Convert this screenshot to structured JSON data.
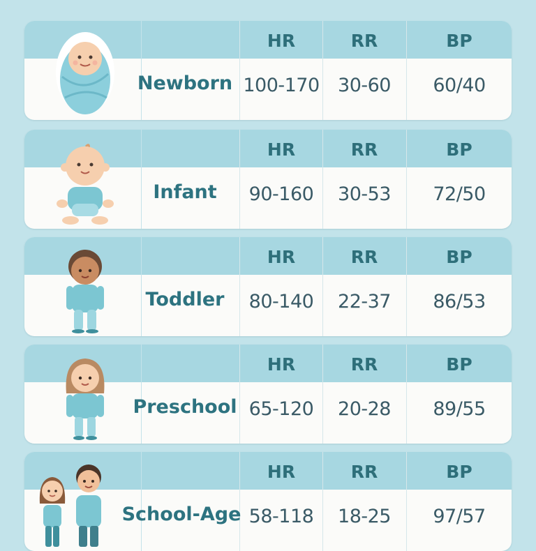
{
  "headers": {
    "hr": "HR",
    "rr": "RR",
    "bp": "BP"
  },
  "rows": [
    {
      "age": "Newborn",
      "hr": "100-170",
      "rr": "30-60",
      "bp": "60/40",
      "figure": "swaddled-baby-icon"
    },
    {
      "age": "Infant",
      "hr": "90-160",
      "rr": "30-53",
      "bp": "72/50",
      "figure": "infant-icon"
    },
    {
      "age": "Toddler",
      "hr": "80-140",
      "rr": "22-37",
      "bp": "86/53",
      "figure": "toddler-icon"
    },
    {
      "age": "Preschool",
      "hr": "65-120",
      "rr": "20-28",
      "bp": "89/55",
      "figure": "preschool-child-icon"
    },
    {
      "age": "School-Age",
      "hr": "58-118",
      "rr": "18-25",
      "bp": "97/57",
      "figure": "school-age-children-icon"
    }
  ],
  "colors": {
    "background": "#c2e3ea",
    "header": "#a7d7e1",
    "card": "#fbfbf9",
    "text_accent": "#2d7380",
    "text_value": "#3a5a66"
  }
}
